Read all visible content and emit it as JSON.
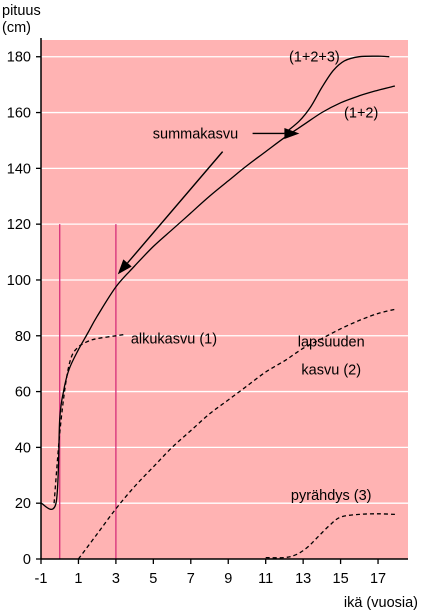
{
  "chart_data": {
    "type": "line",
    "ylabel_line1": "pituus",
    "ylabel_line2": "(cm)",
    "xlabel": "ikä (vuosia)",
    "xlim": [
      -1,
      18.6
    ],
    "ylim": [
      0,
      186
    ],
    "x_ticks": [
      -1,
      1,
      3,
      5,
      7,
      9,
      11,
      13,
      15,
      17
    ],
    "y_ticks": [
      0,
      20,
      40,
      60,
      80,
      100,
      120,
      140,
      160,
      180
    ],
    "grid": "horizontal",
    "colors": {
      "background": "#ffb3b3",
      "gridline": "#ffffff",
      "line": "#000000",
      "marker_line": "#d6307a"
    },
    "vertical_markers": [
      {
        "x": 0,
        "y_top": 120
      },
      {
        "x": 3,
        "y_top": 120
      }
    ],
    "series": [
      {
        "name": "(1+2+3)",
        "style": "solid",
        "x": [
          12,
          12.8,
          13.4,
          14,
          14.6,
          15.2,
          16,
          17,
          17.6
        ],
        "y": [
          152.5,
          157,
          162,
          169,
          175,
          178.5,
          180,
          180.2,
          180
        ]
      },
      {
        "name": "(1+2)",
        "style": "solid",
        "x": [
          -1,
          -0.2,
          0,
          0.2,
          0.5,
          1,
          1.5,
          2,
          3,
          4,
          5,
          6,
          7,
          8,
          9,
          10,
          11,
          12,
          13,
          14,
          15,
          16,
          17,
          17.9
        ],
        "y": [
          20,
          20,
          50,
          60,
          68,
          75,
          81,
          87,
          97.5,
          105,
          112,
          118,
          124,
          130,
          135.5,
          141,
          146,
          151,
          155.5,
          160,
          163.5,
          166,
          168,
          169.5
        ]
      },
      {
        "name": "alkukasvu (1)",
        "style": "dashed",
        "x": [
          -0.3,
          0,
          0.3,
          0.6,
          1,
          1.5,
          2,
          3,
          3.5
        ],
        "y": [
          20,
          45,
          62,
          72,
          76,
          78,
          79,
          80,
          80.5
        ]
      },
      {
        "name": "lapsuuden kasvu (2)",
        "style": "dashed",
        "x": [
          1,
          2,
          3,
          4,
          5,
          6,
          7,
          8,
          9,
          10,
          11,
          12,
          13,
          14,
          15,
          16,
          17,
          17.9
        ],
        "y": [
          0,
          9,
          18,
          26,
          33,
          40,
          46,
          52,
          57,
          62,
          67,
          71,
          75.5,
          79,
          82.5,
          85.5,
          88,
          89.5
        ]
      },
      {
        "name": "pyrähdys (3)",
        "style": "dashed",
        "x": [
          11,
          12,
          12.6,
          13.2,
          13.8,
          14.4,
          15,
          16,
          17,
          17.9
        ],
        "y": [
          0.5,
          0.5,
          1.5,
          4,
          8,
          12,
          15,
          16,
          16.2,
          16
        ]
      }
    ],
    "annotations": [
      {
        "id": "summakasvu",
        "text": "summakasvu",
        "x": 7.25,
        "y": 152.5
      },
      {
        "id": "label-123",
        "text": "(1+2+3)",
        "x": 13.6,
        "y": 180
      },
      {
        "id": "label-12",
        "text": "(1+2)",
        "x": 16.1,
        "y": 160
      },
      {
        "id": "label-alku",
        "text": "alkukasvu (1)",
        "x": 6.1,
        "y": 79
      },
      {
        "id": "label-lapsuus1",
        "text": "lapsuuden",
        "x": 14.5,
        "y": 78
      },
      {
        "id": "label-lapsuus2",
        "text": "kasvu (2)",
        "x": 14.5,
        "y": 68
      },
      {
        "id": "label-pyrahdys",
        "text": "pyrähdys (3)",
        "x": 14.5,
        "y": 23
      }
    ],
    "arrows": [
      {
        "from": [
          8.7,
          146
        ],
        "to": [
          3.1,
          102
        ]
      },
      {
        "from": [
          10.3,
          152.5
        ],
        "to": [
          12.8,
          152.5
        ]
      }
    ]
  }
}
